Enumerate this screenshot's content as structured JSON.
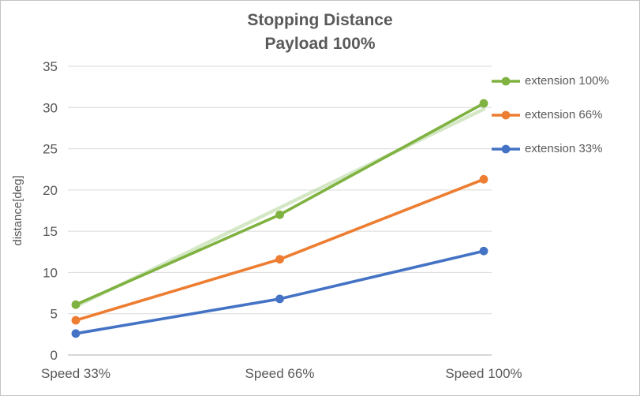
{
  "chart_data": {
    "type": "line",
    "title": "Stopping Distance",
    "subtitle": "Payload 100%",
    "ylabel": "distance[deg]",
    "categories": [
      "Speed 33%",
      "Speed 66%",
      "Speed 100%"
    ],
    "series": [
      {
        "name": "extension 100%",
        "color": "#7FB241",
        "values": [
          6.1,
          17.0,
          30.5
        ]
      },
      {
        "name": "extension 66%",
        "color": "#ED7D31",
        "values": [
          4.2,
          11.6,
          21.3
        ]
      },
      {
        "name": "extension 33%",
        "color": "#4472C4",
        "values": [
          2.6,
          6.8,
          12.6
        ]
      }
    ],
    "trendline": {
      "for_series": "extension 100%",
      "color": "#A9D18E",
      "opacity": 0.5,
      "values": [
        5.9,
        17.85,
        29.8
      ]
    },
    "ylim": [
      0,
      35
    ],
    "yticks": [
      0,
      5,
      10,
      15,
      20,
      25,
      30,
      35
    ],
    "grid": true,
    "legend_position": "right",
    "colors": {
      "text": "#595959",
      "gridline": "#D9D9D9",
      "axis_line": "#BFBFBF",
      "border": "#C3C3C3"
    }
  }
}
